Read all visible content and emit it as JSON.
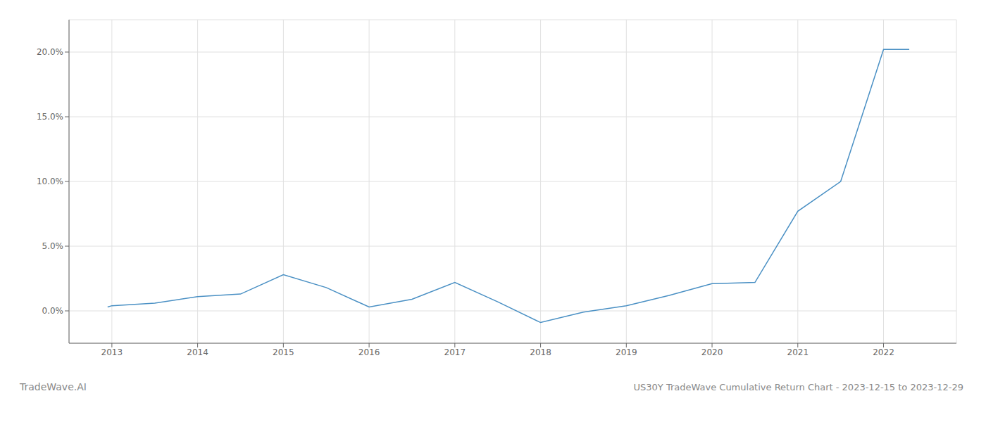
{
  "chart_data": {
    "type": "line",
    "title": "US30Y TradeWave Cumulative Return Chart - 2023-12-15 to 2023-12-29",
    "annotations": [
      "TradeWave.AI"
    ],
    "x": [
      2012.95,
      2013.0,
      2013.5,
      2014.0,
      2014.5,
      2015.0,
      2015.5,
      2016.0,
      2016.5,
      2017.0,
      2017.5,
      2018.0,
      2018.5,
      2019.0,
      2019.5,
      2020.0,
      2020.5,
      2021.0,
      2021.5,
      2022.0,
      2022.3
    ],
    "values": [
      0.003,
      0.004,
      0.006,
      0.011,
      0.013,
      0.028,
      0.018,
      0.003,
      0.009,
      0.022,
      0.007,
      -0.009,
      -0.001,
      0.004,
      0.012,
      0.021,
      0.022,
      0.077,
      0.1,
      0.202,
      0.202
    ],
    "color": "#4a90c4",
    "xlim": [
      2012.5,
      2022.85
    ],
    "xticks": [
      2013,
      2014,
      2015,
      2016,
      2017,
      2018,
      2019,
      2020,
      2021,
      2022
    ],
    "ylim": [
      -0.025,
      0.225
    ],
    "yticks": [
      {
        "value": 0.0,
        "label": "0.0%"
      },
      {
        "value": 0.05,
        "label": "5.0%"
      },
      {
        "value": 0.1,
        "label": "10.0%"
      },
      {
        "value": 0.15,
        "label": "15.0%"
      },
      {
        "value": 0.2,
        "label": "20.0%"
      }
    ],
    "grid": true
  }
}
